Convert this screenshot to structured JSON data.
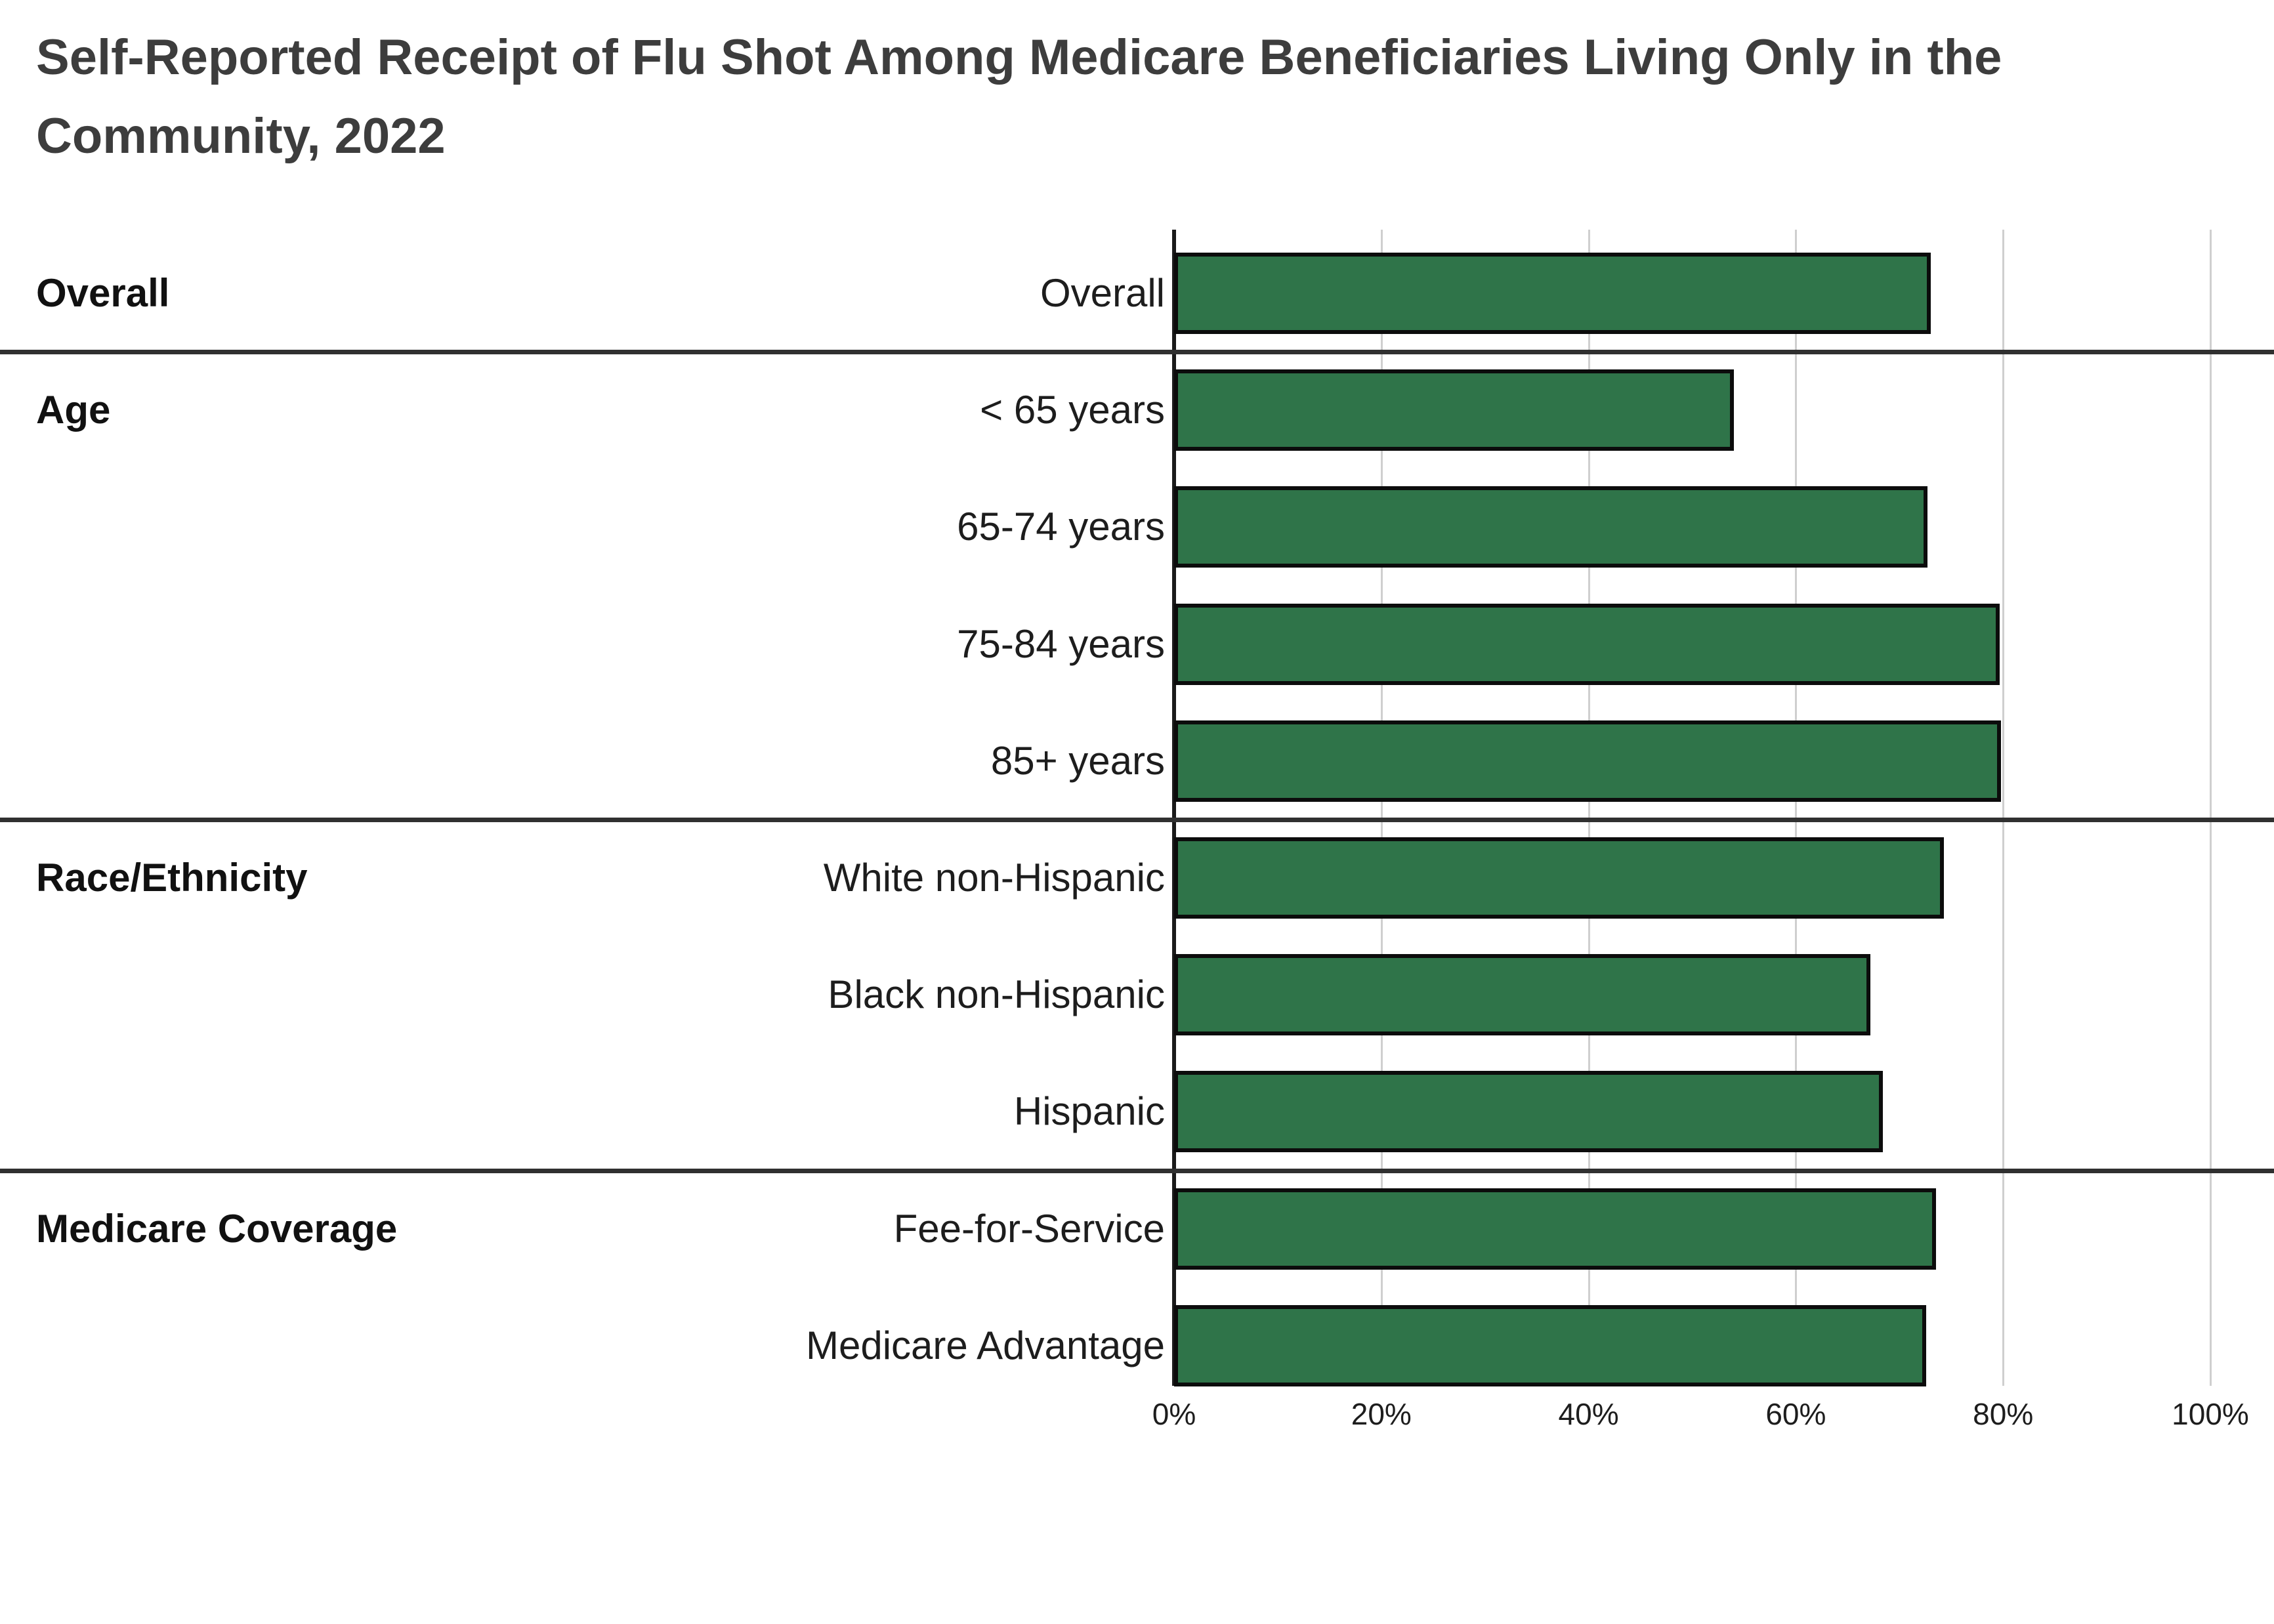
{
  "title": {
    "line1": "Self-Reported Receipt of Flu Shot Among Medicare Beneficiaries Living Only in the",
    "line2": "Community, 2022"
  },
  "chart_data": {
    "type": "bar",
    "orientation": "horizontal",
    "title": "Self-Reported Receipt of Flu Shot Among Medicare Beneficiaries Living Only in the Community, 2022",
    "unit": "percent",
    "xlim": [
      0,
      100
    ],
    "x_ticks": [
      "0%",
      "20%",
      "40%",
      "60%",
      "80%",
      "100%"
    ],
    "grid": true,
    "legend": false,
    "bar_color": "#2f7449",
    "bar_border_color": "#0c0c0c",
    "gridline_color": "#cfcfcf",
    "separator_color": "#303030",
    "groups": [
      {
        "label": "Overall",
        "rows": [
          {
            "label": "Overall",
            "value": 73.0
          }
        ]
      },
      {
        "label": "Age",
        "rows": [
          {
            "label": "< 65 years",
            "value": 54.0
          },
          {
            "label": "65-74 years",
            "value": 72.7
          },
          {
            "label": "75-84 years",
            "value": 79.7
          },
          {
            "label": "85+ years",
            "value": 79.8
          }
        ]
      },
      {
        "label": "Race/Ethnicity",
        "rows": [
          {
            "label": "White non-Hispanic",
            "value": 74.3
          },
          {
            "label": "Black non-Hispanic",
            "value": 67.2
          },
          {
            "label": "Hispanic",
            "value": 68.4
          }
        ]
      },
      {
        "label": "Medicare Coverage",
        "rows": [
          {
            "label": "Fee-for-Service",
            "value": 73.5
          },
          {
            "label": "Medicare Advantage",
            "value": 72.6
          }
        ]
      }
    ]
  }
}
